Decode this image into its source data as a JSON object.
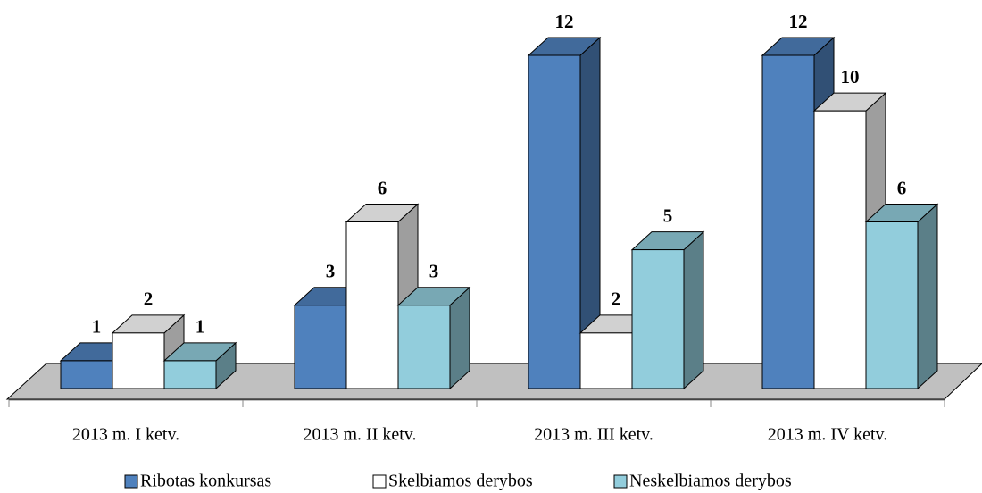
{
  "chart_data": {
    "type": "bar3d",
    "categories": [
      "2013 m. I ketv.",
      "2013 m. II ketv.",
      "2013 m. III ketv.",
      "2013 m. IV ketv."
    ],
    "series": [
      {
        "name": "Ribotas konkursas",
        "color": "#4f81bd",
        "values": [
          1,
          3,
          12,
          12
        ]
      },
      {
        "name": "Skelbiamos derybos",
        "color": "#ffffff",
        "values": [
          2,
          6,
          2,
          10
        ]
      },
      {
        "name": "Neskelbiamos derybos",
        "color": "#92cddc",
        "values": [
          1,
          3,
          5,
          6
        ]
      }
    ],
    "legend": "bottom"
  }
}
